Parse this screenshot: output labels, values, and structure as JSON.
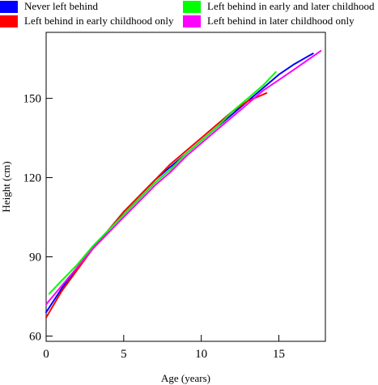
{
  "chart_data": {
    "type": "line",
    "title": "",
    "xlabel": "Age (years)",
    "ylabel": "Height (cm)",
    "xlim": [
      0,
      18
    ],
    "ylim": [
      58,
      175
    ],
    "xticks": [
      0,
      5,
      10,
      15
    ],
    "yticks": [
      60,
      90,
      120,
      150
    ],
    "xtick_labels": [
      "0",
      "5",
      "10",
      "15"
    ],
    "ytick_labels": [
      "60",
      "90",
      "120",
      "150"
    ],
    "grid": false,
    "legend_position": "top",
    "series": [
      {
        "name": "Never left behind",
        "color": "#0000ff",
        "x": [
          0,
          1,
          2,
          3,
          4,
          5,
          6,
          7,
          8,
          9,
          10,
          11,
          12,
          13,
          14,
          15,
          16,
          17.2
        ],
        "y": [
          69,
          78,
          86,
          93,
          100,
          107,
          113,
          119,
          124,
          129,
          134,
          139,
          144,
          149,
          154,
          159,
          163,
          167
        ]
      },
      {
        "name": "Left behind in early childhood only",
        "color": "#ff0000",
        "x": [
          0,
          1,
          2,
          3,
          4,
          5,
          6,
          7,
          8,
          9,
          10,
          11,
          12,
          13,
          14.2
        ],
        "y": [
          67,
          77,
          85,
          93,
          100,
          107,
          113,
          119,
          125,
          130,
          135,
          140,
          145,
          149,
          152
        ]
      },
      {
        "name": "Left behind in early and later childhood",
        "color": "#00ff00",
        "x": [
          0.2,
          1,
          2,
          3,
          4,
          5,
          6,
          7,
          8,
          9,
          10,
          11,
          12,
          13,
          14,
          14.8
        ],
        "y": [
          76,
          81,
          87,
          94,
          100,
          106,
          112,
          118,
          123,
          129,
          134,
          139,
          145,
          150,
          155,
          160
        ]
      },
      {
        "name": "Left behind in later childhood only",
        "color": "#ff00ff",
        "x": [
          0,
          1,
          2,
          3,
          4,
          5,
          6,
          7,
          8,
          9,
          10,
          11,
          12,
          13,
          14,
          15,
          16,
          17.7
        ],
        "y": [
          72,
          79,
          86,
          93,
          99,
          105,
          111,
          117,
          122,
          128,
          133,
          138,
          143,
          148,
          153,
          157,
          161,
          168
        ]
      }
    ]
  },
  "legend": [
    {
      "label": "Never left behind",
      "color": "#0000ff"
    },
    {
      "label": "Left behind in early childhood only",
      "color": "#ff0000"
    },
    {
      "label": "Left behind in early and later childhood",
      "color": "#00ff00"
    },
    {
      "label": "Left behind in later childhood only",
      "color": "#ff00ff"
    }
  ]
}
